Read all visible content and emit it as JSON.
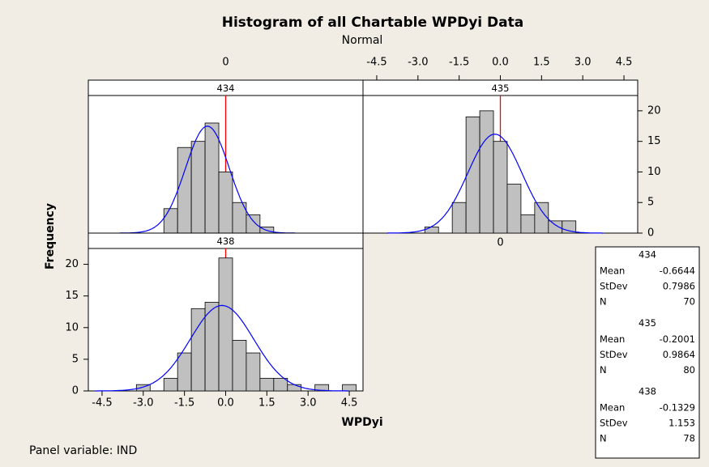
{
  "chart_data": {
    "type": "histogram",
    "title": "Histogram of all Chartable WPDyi Data",
    "subtitle": "Normal",
    "xlabel": "WPDyi",
    "ylabel": "Frequency",
    "footnote": "Panel variable: IND",
    "xlim": [
      -5,
      5
    ],
    "xticks": [
      -4.5,
      {
        "value": -3.0,
        "label": "-3.0"
      },
      -1.5,
      {
        "value": 0,
        "label": "0.0"
      },
      1.5,
      {
        "value": 3.0,
        "label": "3.0"
      },
      4.5
    ],
    "ylim": [
      0,
      22.5
    ],
    "yticks": [
      0,
      5,
      10,
      15,
      20
    ],
    "reference_line": 0,
    "bar_color": "#c0c0c0",
    "curve_color": "#0000ff",
    "reference_color": "#ff0000",
    "legend_labels": [
      "Mean",
      "StDev",
      "N"
    ],
    "panels": [
      {
        "name": "434",
        "bins": [
          -2.25,
          -1.75,
          -1.25,
          -0.75,
          -0.25,
          0.25,
          0.75,
          1.25,
          1.75
        ],
        "counts": [
          4,
          14,
          15,
          18,
          10,
          5,
          3,
          1
        ],
        "mean": -0.6644,
        "stdev": 0.7986,
        "n": 70
      },
      {
        "name": "435",
        "bins": [
          -2.75,
          -2.25,
          -1.75,
          -1.25,
          -0.75,
          -0.25,
          0.25,
          0.75,
          1.25,
          1.75,
          2.25,
          2.75
        ],
        "counts": [
          1,
          0,
          5,
          19,
          20,
          15,
          8,
          3,
          5,
          2,
          2
        ],
        "mean": -0.2001,
        "stdev": 0.9864,
        "n": 80
      },
      {
        "name": "438",
        "bins": [
          -3.25,
          -2.75,
          -2.25,
          -1.75,
          -1.25,
          -0.75,
          -0.25,
          0.25,
          0.75,
          1.25,
          1.75,
          2.25,
          2.75,
          3.25,
          3.75,
          4.25,
          4.75
        ],
        "counts": [
          1,
          0,
          2,
          6,
          13,
          14,
          21,
          8,
          6,
          2,
          2,
          1,
          0,
          1,
          0,
          1
        ],
        "mean": -0.1329,
        "stdev": 1.153,
        "n": 78
      }
    ]
  }
}
